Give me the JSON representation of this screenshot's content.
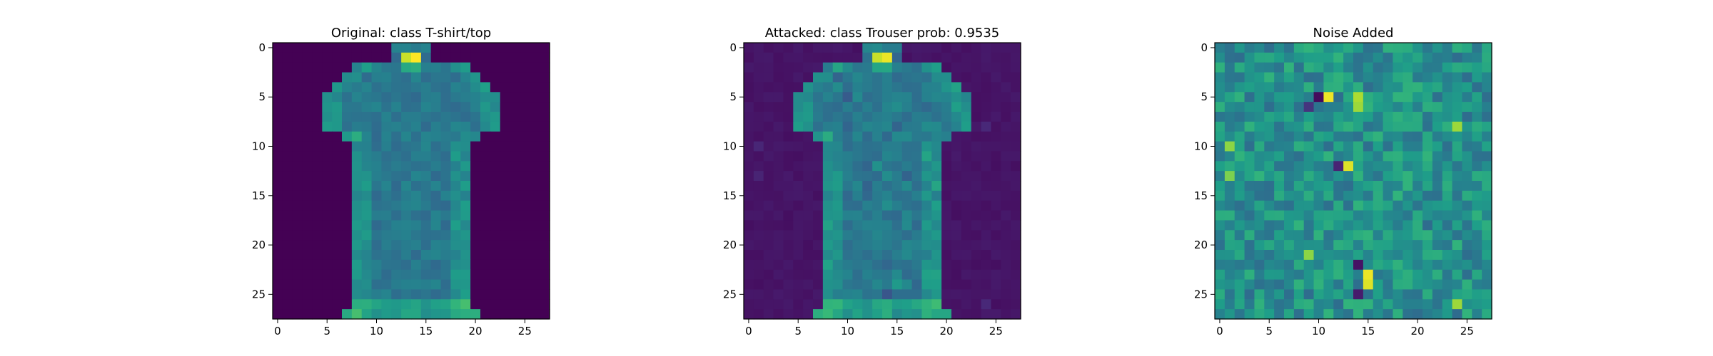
{
  "chart_data": [
    {
      "type": "heatmap",
      "title": "Original: class T-shirt/top",
      "colormap": "viridis",
      "image_size": [
        28,
        28
      ],
      "value_range": [
        0,
        1
      ],
      "x_ticks": [
        0,
        5,
        10,
        15,
        20,
        25
      ],
      "y_ticks": [
        0,
        5,
        10,
        15,
        20,
        25
      ],
      "xlabel": "",
      "ylabel": ""
    },
    {
      "type": "heatmap",
      "title": "Attacked: class Trouser prob: 0.9535",
      "colormap": "viridis",
      "image_size": [
        28,
        28
      ],
      "value_range": [
        0,
        1
      ],
      "x_ticks": [
        0,
        5,
        10,
        15,
        20,
        25
      ],
      "y_ticks": [
        0,
        5,
        10,
        15,
        20,
        25
      ],
      "xlabel": "",
      "ylabel": ""
    },
    {
      "type": "heatmap",
      "title": "Noise Added",
      "colormap": "viridis",
      "image_size": [
        28,
        28
      ],
      "value_range": [
        -1,
        1
      ],
      "x_ticks": [
        0,
        5,
        10,
        15,
        20,
        25
      ],
      "y_ticks": [
        0,
        5,
        10,
        15,
        20,
        25
      ],
      "xlabel": "",
      "ylabel": ""
    }
  ]
}
